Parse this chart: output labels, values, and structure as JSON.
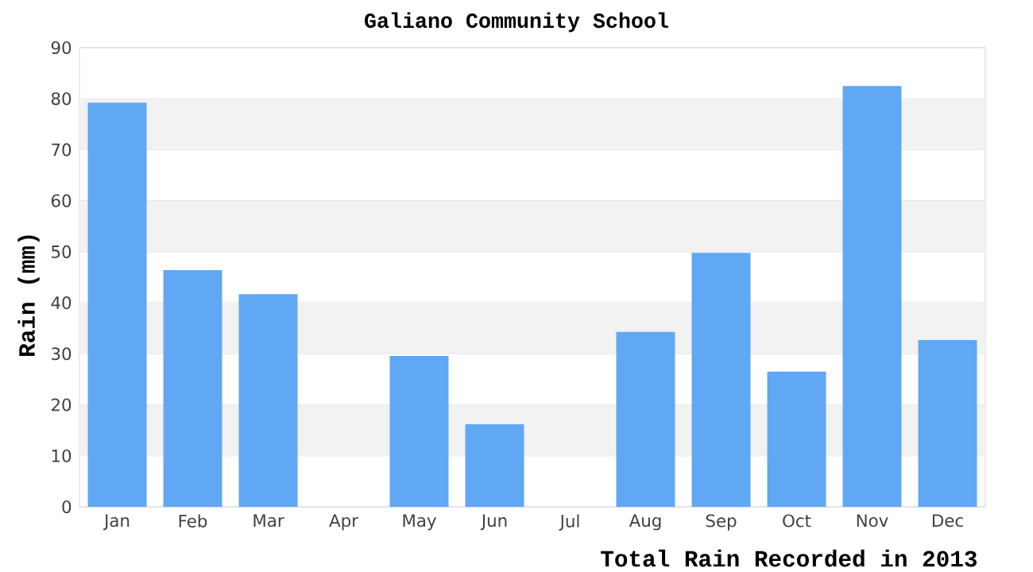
{
  "chart_data": {
    "type": "bar",
    "title": "Galiano Community School",
    "xlabel": "Total Rain Recorded in 2013",
    "ylabel": "Rain (mm)",
    "categories": [
      "Jan",
      "Feb",
      "Mar",
      "Apr",
      "May",
      "Jun",
      "Jul",
      "Aug",
      "Sep",
      "Oct",
      "Nov",
      "Dec"
    ],
    "values": [
      79.2,
      46.4,
      41.7,
      0,
      29.6,
      16.2,
      0,
      34.3,
      49.8,
      26.5,
      82.5,
      32.7
    ],
    "color": "#60a8f4",
    "ylim": [
      0,
      90
    ],
    "yticks": [
      0,
      10,
      20,
      30,
      40,
      50,
      60,
      70,
      80,
      90
    ],
    "grid": "y"
  }
}
